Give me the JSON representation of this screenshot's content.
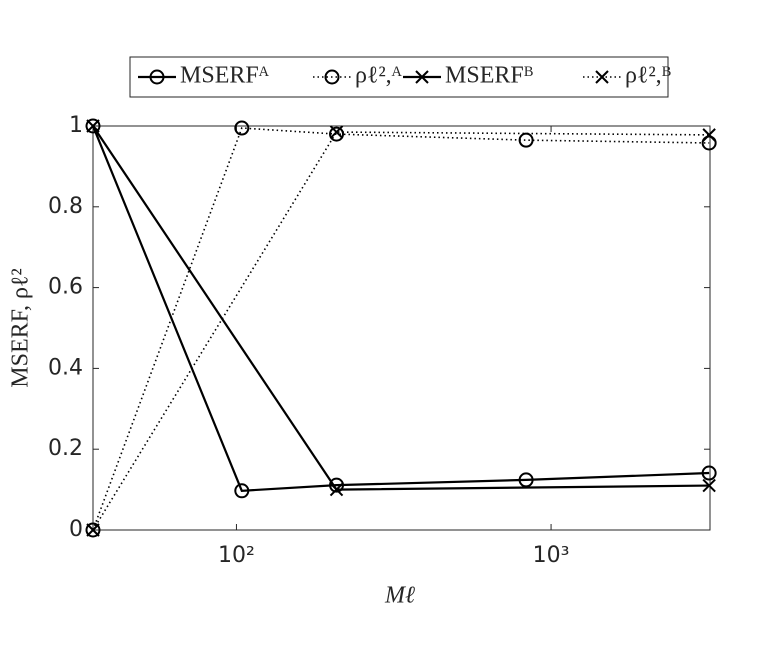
{
  "chart_data": {
    "type": "line",
    "x_label": "Mℓ",
    "y_label": "MSERF, ρℓ²",
    "xlog": true,
    "xlim": [
      35,
      3200
    ],
    "ylim": [
      0,
      1
    ],
    "xticks": [
      {
        "value": 100,
        "label": "10²"
      },
      {
        "value": 1000,
        "label": "10³"
      }
    ],
    "yticks": [
      0,
      0.2,
      0.4,
      0.6,
      0.8,
      1
    ],
    "legend": "top",
    "series": [
      {
        "name": "MSERFᴬ",
        "color": "#000000",
        "dash": "solid",
        "marker": "circle",
        "x": [
          35,
          104,
          208,
          833,
          3180
        ],
        "values": [
          1,
          0.097,
          0.111,
          0.124,
          0.141
        ]
      },
      {
        "name": "ρℓ²,ᴬ",
        "color": "#000000",
        "dash": "dotted",
        "marker": "circle",
        "x": [
          35,
          104,
          208,
          833,
          3180
        ],
        "values": [
          0,
          0.995,
          0.98,
          0.965,
          0.958
        ]
      },
      {
        "name": "MSERFᴮ",
        "color": "#000000",
        "dash": "solid",
        "marker": "x",
        "x": [
          35,
          208,
          3180
        ],
        "values": [
          1,
          0.1,
          0.11
        ]
      },
      {
        "name": "ρℓ²,ᴮ",
        "color": "#000000",
        "dash": "dotted",
        "marker": "x",
        "x": [
          35,
          208,
          3180
        ],
        "values": [
          0,
          0.985,
          0.978
        ]
      }
    ]
  }
}
